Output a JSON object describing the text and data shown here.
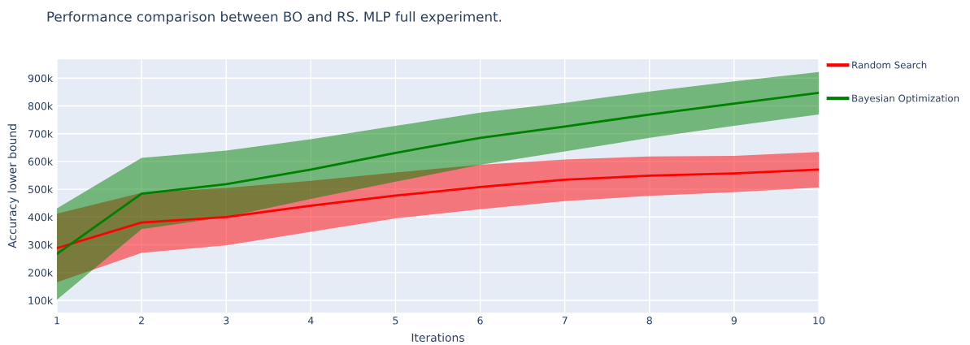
{
  "chart_data": {
    "type": "line",
    "title": "Performance comparison between BO and RS. MLP full experiment.",
    "xlabel": "Iterations",
    "ylabel": "Accuracy lower bound",
    "x": [
      1,
      2,
      3,
      4,
      5,
      6,
      7,
      8,
      9,
      10
    ],
    "series": [
      {
        "name": "Random Search",
        "color": "#ff0000",
        "values": [
          288000,
          380000,
          400000,
          441000,
          477000,
          508000,
          534000,
          549000,
          557000,
          571000
        ],
        "lower": [
          165000,
          271000,
          298000,
          347000,
          395000,
          428000,
          457000,
          476000,
          489000,
          506000
        ],
        "upper": [
          412000,
          487000,
          505000,
          530000,
          560000,
          588000,
          607000,
          618000,
          620000,
          634000
        ]
      },
      {
        "name": "Bayesian Optimization",
        "color": "#008000",
        "values": [
          267000,
          484000,
          518000,
          571000,
          631000,
          685000,
          726000,
          769000,
          808000,
          847000
        ],
        "lower": [
          102000,
          356000,
          400000,
          465000,
          527000,
          588000,
          636000,
          685000,
          728000,
          769000
        ],
        "upper": [
          431000,
          613000,
          639000,
          680000,
          728000,
          776000,
          811000,
          852000,
          888000,
          922000
        ]
      }
    ],
    "xlim": [
      1,
      10
    ],
    "xticks": [
      1,
      2,
      3,
      4,
      5,
      6,
      7,
      8,
      9,
      10
    ],
    "ylim": [
      56000,
      968000
    ],
    "yticks": [
      {
        "value": 100000,
        "label": "100k"
      },
      {
        "value": 200000,
        "label": "200k"
      },
      {
        "value": 300000,
        "label": "300k"
      },
      {
        "value": 400000,
        "label": "400k"
      },
      {
        "value": 500000,
        "label": "500k"
      },
      {
        "value": 600000,
        "label": "600k"
      },
      {
        "value": 700000,
        "label": "700k"
      },
      {
        "value": 800000,
        "label": "800k"
      },
      {
        "value": 900000,
        "label": "900k"
      }
    ],
    "grid": true,
    "legend": "top right",
    "marker": "none",
    "line_style": "solid"
  }
}
